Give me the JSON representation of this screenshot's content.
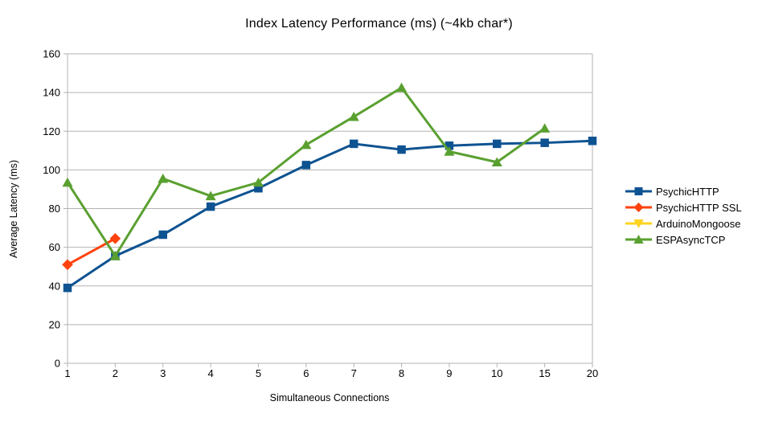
{
  "chart_data": {
    "type": "line",
    "title": "Index Latency Performance (ms) (~4kb char*)",
    "xlabel": "Simultaneous Connections",
    "ylabel": "Average Latency (ms)",
    "categories": [
      "1",
      "2",
      "3",
      "4",
      "5",
      "6",
      "7",
      "8",
      "9",
      "10",
      "15",
      "20"
    ],
    "ylim": [
      0,
      160
    ],
    "ytick_step": 20,
    "grid": "horizontal-only",
    "legend_position": "right",
    "series": [
      {
        "name": "PsychicHTTP",
        "color": "#0E5391",
        "marker": "square",
        "values": [
          39,
          55.5,
          66.5,
          81,
          90.5,
          102.5,
          113.5,
          110.5,
          112.5,
          113.5,
          114,
          115
        ]
      },
      {
        "name": "PsychicHTTP SSL",
        "color": "#FF420E",
        "marker": "diamond",
        "values": [
          51,
          64.5,
          null,
          null,
          null,
          null,
          null,
          null,
          null,
          null,
          null,
          null
        ]
      },
      {
        "name": "ArduinoMongoose",
        "color": "#FFD320",
        "marker": "triangle-down",
        "values": [
          null,
          null,
          null,
          null,
          null,
          null,
          null,
          null,
          null,
          null,
          null,
          null
        ]
      },
      {
        "name": "ESPAsyncTCP",
        "color": "#5AA030",
        "marker": "triangle-up",
        "values": [
          93.5,
          55.5,
          95.5,
          86.5,
          93.5,
          113,
          127.5,
          142.5,
          109.5,
          104,
          121.5,
          null
        ]
      }
    ]
  },
  "colors": {
    "background": "#ffffff",
    "grid": "#b3b3b3",
    "axis": "#b3b3b3",
    "text": "#000000"
  }
}
